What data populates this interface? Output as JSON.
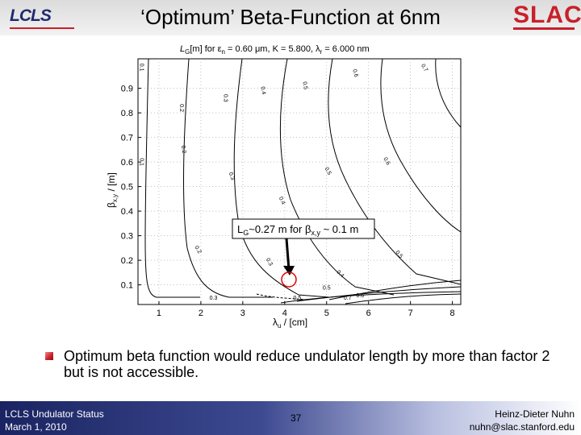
{
  "header": {
    "title": "‘Optimum’ Beta-Function at 6nm",
    "logo_left": "LCLS",
    "logo_right": "SLAC"
  },
  "plot": {
    "title_parts": {
      "a": "L",
      "a_sub": "G",
      "b": "[m] for ε",
      "b_sub": "n",
      "c": " = 0.60 μm,  K =  5.800, λ",
      "c_sub": "r",
      "d": " =  6.000 nm"
    },
    "xlabel": "λ",
    "xlabel_sub": "u",
    "xlabel_tail": " / [cm]",
    "ylabel": "β",
    "ylabel_sub": "x,y",
    "ylabel_tail": " / [m]",
    "annotation": {
      "a": "L",
      "a_sub": "G",
      "b": "~0.27 m for β",
      "b_sub": "x,y",
      "c": " ~ 0.1 m"
    },
    "marker_color": "#e00000"
  },
  "chart_data": {
    "type": "contour",
    "x_ticks": [
      "1",
      "2",
      "3",
      "4",
      "5",
      "6",
      "7",
      "8"
    ],
    "y_ticks": [
      "0.1",
      "0.2",
      "0.3",
      "0.4",
      "0.5",
      "0.6",
      "0.7",
      "0.8",
      "0.9"
    ],
    "xlim": [
      0.5,
      8.2
    ],
    "ylim": [
      0.02,
      1.02
    ],
    "grid": true,
    "contour_labels": [
      {
        "text": "0.1",
        "x": 0.55,
        "y": 0.985,
        "rot": 90
      },
      {
        "text": "0.2",
        "x": 1.5,
        "y": 0.82,
        "rot": 90
      },
      {
        "text": "0.3",
        "x": 2.55,
        "y": 0.86,
        "rot": 90
      },
      {
        "text": "0.4",
        "x": 3.45,
        "y": 0.89,
        "rot": 80
      },
      {
        "text": "0.5",
        "x": 4.45,
        "y": 0.91,
        "rot": 80
      },
      {
        "text": "0.6",
        "x": 5.65,
        "y": 0.96,
        "rot": 75
      },
      {
        "text": "0.7",
        "x": 7.3,
        "y": 0.98,
        "rot": 60
      },
      {
        "text": "0.1",
        "x": 0.55,
        "y": 0.6,
        "rot": 90
      },
      {
        "text": "0.2",
        "x": 1.55,
        "y": 0.65,
        "rot": 80
      },
      {
        "text": "0.3",
        "x": 2.7,
        "y": 0.54,
        "rot": 70
      },
      {
        "text": "0.4",
        "x": 3.9,
        "y": 0.44,
        "rot": 65
      },
      {
        "text": "0.5",
        "x": 5.0,
        "y": 0.56,
        "rot": 60
      },
      {
        "text": "0.6",
        "x": 6.4,
        "y": 0.6,
        "rot": 60
      },
      {
        "text": "0.2",
        "x": 1.9,
        "y": 0.24,
        "rot": 60
      },
      {
        "text": "0.3",
        "x": 3.6,
        "y": 0.19,
        "rot": 60
      },
      {
        "text": "0.4",
        "x": 5.3,
        "y": 0.14,
        "rot": 45
      },
      {
        "text": "0.5",
        "x": 6.7,
        "y": 0.22,
        "rot": 50
      },
      {
        "text": "0.3",
        "x": 2.3,
        "y": 0.04,
        "rot": 0
      },
      {
        "text": "0.5",
        "x": 4.3,
        "y": 0.04,
        "rot": 0
      },
      {
        "text": "0.5",
        "x": 5.0,
        "y": 0.08,
        "rot": 0
      },
      {
        "text": "0.6",
        "x": 5.8,
        "y": 0.05,
        "rot": 0
      },
      {
        "text": "0.7",
        "x": 5.5,
        "y": 0.04,
        "rot": 0
      }
    ]
  },
  "bullet": {
    "text": "Optimum beta function would reduce undulator length by more than factor 2 but is not accessible."
  },
  "footer": {
    "left_line1": "LCLS Undulator Status",
    "left_line2": "March 1, 2010",
    "page": "37",
    "right_line1": "Heinz-Dieter Nuhn",
    "right_line2": "nuhn@slac.stanford.edu"
  },
  "colors": {
    "footer_dark": "#1a2462",
    "accent_red": "#c8202a"
  }
}
